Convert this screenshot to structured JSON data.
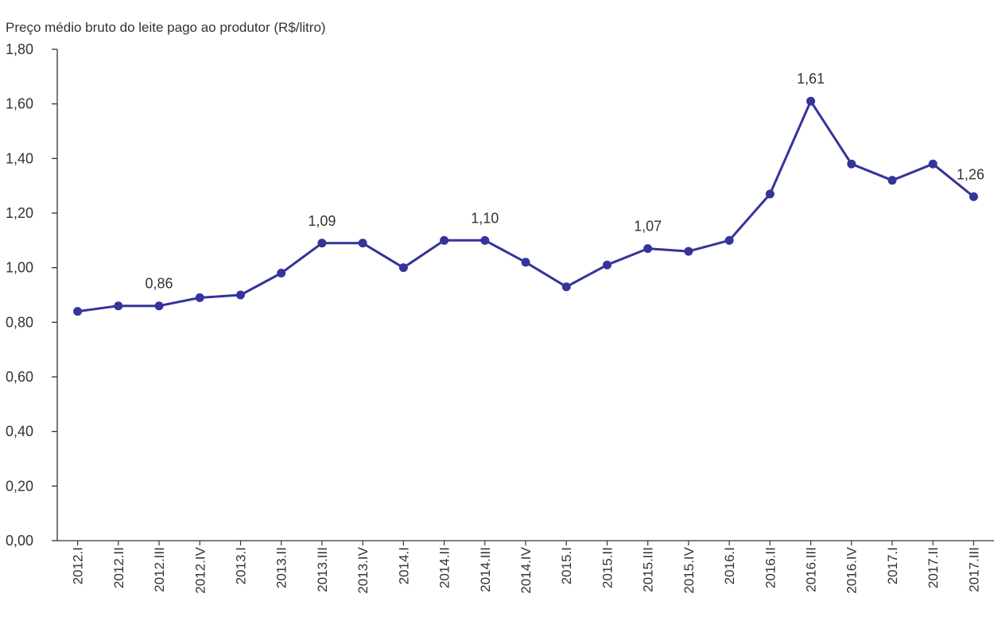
{
  "chart_data": {
    "type": "line",
    "title": "Preço médio bruto do leite pago ao produtor (R$/litro)",
    "xlabel": "",
    "ylabel": "",
    "categories": [
      "2012.I",
      "2012.II",
      "2012.III",
      "2012.IV",
      "2013.I",
      "2013.II",
      "2013.III",
      "2013.IV",
      "2014.I",
      "2014.II",
      "2014.III",
      "2014.IV",
      "2015.I",
      "2015.II",
      "2015.III",
      "2015.IV",
      "2016.I",
      "2016.II",
      "2016.III",
      "2016.IV",
      "2017.I",
      "2017.II",
      "2017.III"
    ],
    "series": [
      {
        "values": [
          0.84,
          0.86,
          0.86,
          0.89,
          0.9,
          0.98,
          1.09,
          1.09,
          1.0,
          1.1,
          1.1,
          1.02,
          0.93,
          1.01,
          1.07,
          1.06,
          1.1,
          1.27,
          1.61,
          1.38,
          1.32,
          1.38,
          1.26
        ],
        "color": "#35349a"
      }
    ],
    "data_labels": [
      {
        "index": 2,
        "text": "0,86"
      },
      {
        "index": 6,
        "text": "1,09"
      },
      {
        "index": 10,
        "text": "1,10"
      },
      {
        "index": 14,
        "text": "1,07"
      },
      {
        "index": 18,
        "text": "1,61"
      },
      {
        "index": 22,
        "text": "1,26"
      }
    ],
    "ylim": [
      0,
      1.8
    ],
    "yticks": [
      0,
      0.2,
      0.4,
      0.6,
      0.8,
      1.0,
      1.2,
      1.4,
      1.6,
      1.8
    ],
    "ytick_labels": [
      "0,00",
      "0,20",
      "0,40",
      "0,60",
      "0,80",
      "1,00",
      "1,20",
      "1,40",
      "1,60",
      "1,80"
    ],
    "grid": false,
    "legend": "none",
    "axis_color": "#333333"
  }
}
